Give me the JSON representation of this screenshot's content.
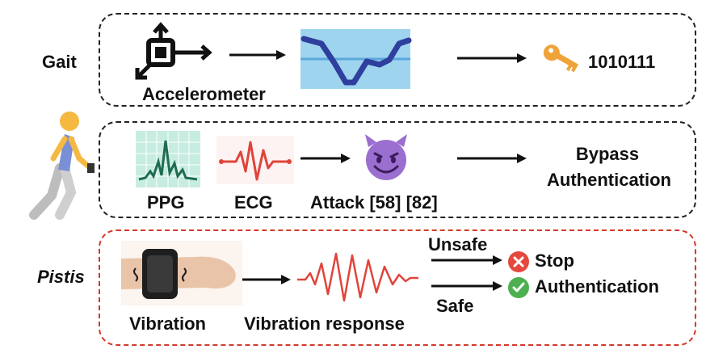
{
  "rows": {
    "gait": {
      "label": "Gait",
      "sensor_label": "Accelerometer",
      "key_value": "1010111"
    },
    "existing": {
      "ppg_label": "PPG",
      "ecg_label": "ECG",
      "attack_label": "Attack [58] [82]",
      "result_line1": "Bypass",
      "result_line2": "Authentication"
    },
    "pistis": {
      "label": "Pistis",
      "vibration_label": "Vibration",
      "response_label": "Vibration response",
      "unsafe_label": "Unsafe",
      "safe_label": "Safe",
      "stop_label": "Stop",
      "auth_label": "Authentication"
    }
  },
  "colors": {
    "dashed_black": "#222222",
    "dashed_red": "#d33a2c",
    "wave_blue": "#2f3f9e",
    "panel_blue": "#9fd4ef",
    "ppg_green": "#1f6d4f",
    "ecg_red": "#e0443b",
    "stop_red": "#e5483c",
    "ok_green": "#4caf50",
    "key_orange": "#f0a33a",
    "devil_purple": "#9b6fd0"
  }
}
